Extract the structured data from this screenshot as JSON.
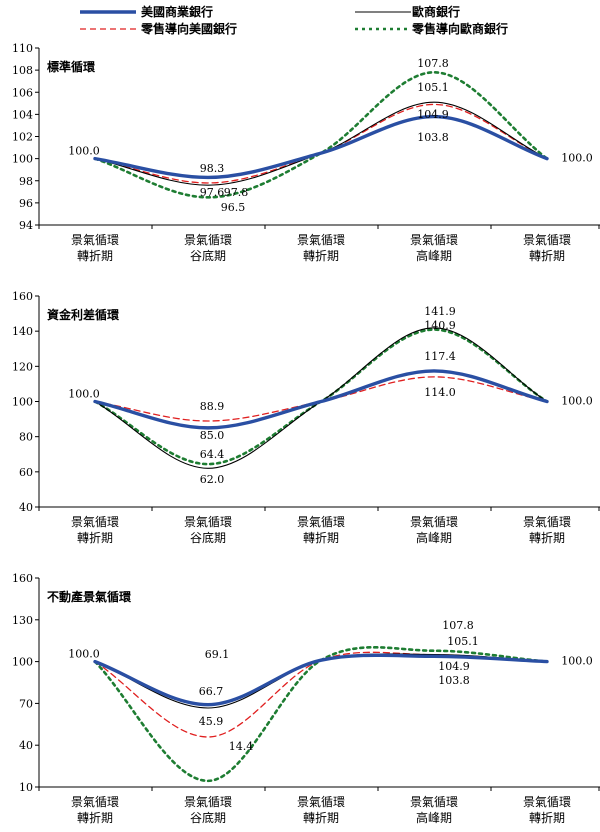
{
  "legend": [
    {
      "name": "美國商業銀行",
      "color": "#2a4fa3",
      "style": "solid-thick"
    },
    {
      "name": "歐商銀行",
      "color": "#000000",
      "style": "solid-thin"
    },
    {
      "name": "零售導向美國銀行",
      "color": "#e02020",
      "style": "dashed"
    },
    {
      "name": "零售導向歐商銀行",
      "color": "#1e7d32",
      "style": "dotted-thick"
    }
  ],
  "chart_data": [
    {
      "type": "line",
      "title": "標準循環",
      "categories": [
        [
          "景氣循環",
          "轉折期"
        ],
        [
          "景氣循環",
          "谷底期"
        ],
        [
          "景氣循環",
          "轉折期"
        ],
        [
          "景氣循環",
          "高峰期"
        ],
        [
          "景氣循環",
          "轉折期"
        ]
      ],
      "ylim": [
        94,
        110
      ],
      "yticks": [
        94,
        96,
        98,
        100,
        102,
        104,
        106,
        108,
        110
      ],
      "series": [
        {
          "name": "美國商業銀行",
          "values": [
            100.0,
            98.3,
            100.5,
            103.8,
            100.0
          ]
        },
        {
          "name": "歐商銀行",
          "values": [
            100.0,
            97.6,
            100.5,
            105.1,
            100.0
          ]
        },
        {
          "name": "零售導向美國銀行",
          "values": [
            100.0,
            97.8,
            100.5,
            104.9,
            100.0
          ]
        },
        {
          "name": "零售導向歐商銀行",
          "values": [
            100.0,
            96.5,
            100.5,
            107.8,
            100.0
          ]
        }
      ],
      "labels": {
        "start": "100.0",
        "end": "100.0",
        "trough": [
          "98.3",
          "97.6",
          "97.8",
          "96.5"
        ],
        "peak": [
          "107.8",
          "105.1",
          "104.9",
          "103.8"
        ]
      }
    },
    {
      "type": "line",
      "title": "資金利差循環",
      "categories": [
        [
          "景氣循環",
          "轉折期"
        ],
        [
          "景氣循環",
          "谷底期"
        ],
        [
          "景氣循環",
          "轉折期"
        ],
        [
          "景氣循環",
          "高峰期"
        ],
        [
          "景氣循環",
          "轉折期"
        ]
      ],
      "ylim": [
        40,
        160
      ],
      "yticks": [
        40,
        60,
        80,
        100,
        120,
        140,
        160
      ],
      "series": [
        {
          "name": "美國商業銀行",
          "values": [
            100.0,
            85.0,
            100.0,
            117.4,
            100.0
          ]
        },
        {
          "name": "歐商銀行",
          "values": [
            100.0,
            62.0,
            100.0,
            141.9,
            100.0
          ]
        },
        {
          "name": "零售導向美國銀行",
          "values": [
            100.0,
            88.9,
            100.0,
            114.0,
            100.0
          ]
        },
        {
          "name": "零售導向歐商銀行",
          "values": [
            100.0,
            64.4,
            100.0,
            140.9,
            100.0
          ]
        }
      ],
      "labels": {
        "start": "100.0",
        "end": "100.0",
        "trough": [
          "88.9",
          "85.0",
          "64.4",
          "62.0"
        ],
        "peak": [
          "141.9",
          "140.9",
          "117.4",
          "114.0"
        ]
      }
    },
    {
      "type": "line",
      "title": "不動產景氣循環",
      "categories": [
        [
          "景氣循環",
          "轉折期"
        ],
        [
          "景氣循環",
          "谷底期"
        ],
        [
          "景氣循環",
          "轉折期"
        ],
        [
          "景氣循環",
          "高峰期"
        ],
        [
          "景氣循環",
          "轉折期"
        ]
      ],
      "ylim": [
        10,
        160
      ],
      "yticks": [
        10,
        40,
        70,
        100,
        130,
        160
      ],
      "series": [
        {
          "name": "美國商業銀行",
          "values": [
            100.0,
            69.1,
            101.0,
            103.8,
            100.0
          ]
        },
        {
          "name": "歐商銀行",
          "values": [
            100.0,
            66.7,
            101.0,
            105.1,
            100.0
          ]
        },
        {
          "name": "零售導向美國銀行",
          "values": [
            100.0,
            45.9,
            101.0,
            104.9,
            100.0
          ]
        },
        {
          "name": "零售導向歐商銀行",
          "values": [
            100.0,
            14.4,
            101.0,
            107.8,
            100.0
          ]
        }
      ],
      "labels": {
        "start": "100.0",
        "end": "100.0",
        "trough": [
          "69.1",
          "66.7",
          "45.9",
          "14.4"
        ],
        "peak": [
          "107.8",
          "105.1",
          "104.9",
          "103.8"
        ]
      }
    }
  ]
}
